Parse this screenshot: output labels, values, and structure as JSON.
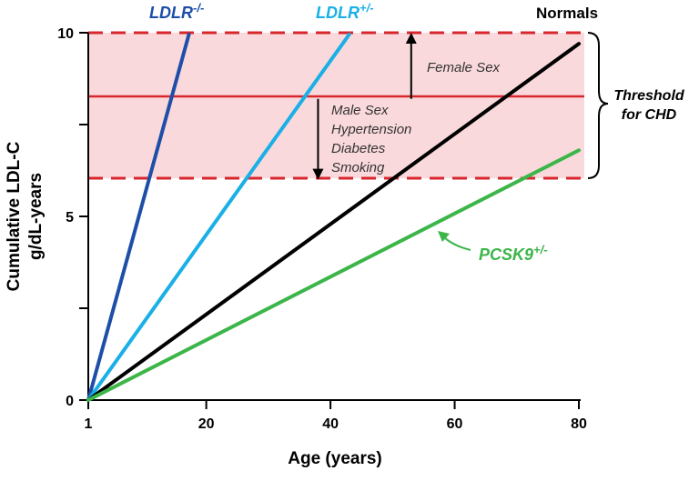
{
  "chart_data": {
    "type": "line",
    "xlabel": "Age (years)",
    "ylabel_line1": "Cumulative LDL-C",
    "ylabel_line2": "g/dL-years",
    "xlim": [
      1,
      80
    ],
    "ylim": [
      0,
      10
    ],
    "x_ticks": [
      {
        "value": 1,
        "label": "1"
      },
      {
        "value": 20,
        "label": "20"
      },
      {
        "value": 40,
        "label": "40"
      },
      {
        "value": 60,
        "label": "60"
      },
      {
        "value": 80,
        "label": "80"
      }
    ],
    "y_ticks": [
      {
        "value": 0,
        "label": "0"
      },
      {
        "value": 2.5,
        "label": ""
      },
      {
        "value": 5,
        "label": "5"
      },
      {
        "value": 7.5,
        "label": ""
      },
      {
        "value": 10,
        "label": "10"
      }
    ],
    "grid": false,
    "threshold_band": {
      "lower": 6.0,
      "upper": 10.0,
      "center": 8.2,
      "fill": "#fad9dc",
      "line_color": "#d8262d",
      "label_line1": "Threshold",
      "label_line2": "for CHD"
    },
    "annotations": {
      "up_arrow": {
        "from": 8.2,
        "to": 10.0,
        "x": 53
      },
      "down_arrow": {
        "from": 8.2,
        "to": 6.0,
        "x": 38
      },
      "female_label": "Female Sex",
      "male_factors": [
        "Male Sex",
        "Hypertension",
        "Diabetes",
        "Smoking"
      ]
    },
    "series": [
      {
        "name_base": "LDLR",
        "name_sup": "-/-",
        "color": "#1e4fa8",
        "x": [
          1,
          17.2
        ],
        "y": [
          0,
          9.95
        ]
      },
      {
        "name_base": "LDLR",
        "name_sup": "+/-",
        "color": "#1ab0e6",
        "x": [
          1,
          43
        ],
        "y": [
          0,
          9.95
        ]
      },
      {
        "name_base": "Normals",
        "name_sup": "",
        "color": "#000000",
        "x": [
          1,
          80
        ],
        "y": [
          0,
          9.7
        ]
      },
      {
        "name_base": "PCSK9",
        "name_sup": "+/-",
        "color": "#3cb549",
        "x": [
          1,
          80
        ],
        "y": [
          0,
          6.8
        ]
      }
    ]
  }
}
